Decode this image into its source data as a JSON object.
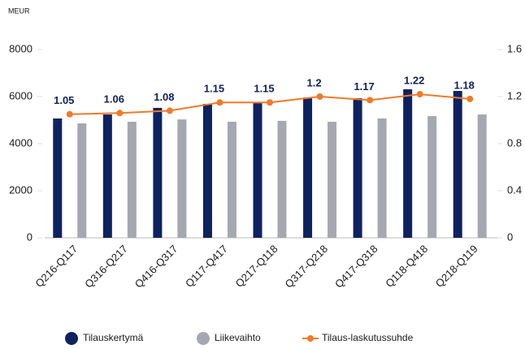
{
  "chart_data": {
    "type": "bar_line",
    "y_unit_label": "MEUR",
    "categories": [
      "Q216-Q117",
      "Q316-Q217",
      "Q416-Q317",
      "Q117-Q417",
      "Q217-Q118",
      "Q317-Q218",
      "Q417-Q318",
      "Q118-Q418",
      "Q218-Q119"
    ],
    "series": [
      {
        "name": "Tilauskertymä",
        "type": "bar",
        "color": "#0f2260",
        "values": [
          5070,
          5240,
          5520,
          5690,
          5720,
          5960,
          5930,
          6310,
          6240
        ]
      },
      {
        "name": "Liikevaihto",
        "type": "bar",
        "color": "#a5a8b0",
        "values": [
          4860,
          4930,
          5030,
          4930,
          4970,
          4930,
          5070,
          5170,
          5240
        ]
      },
      {
        "name": "Tilaus-laskutussuhde",
        "type": "line",
        "axis": "y2",
        "color": "#f07a2a",
        "values": [
          1.05,
          1.06,
          1.08,
          1.15,
          1.15,
          1.2,
          1.17,
          1.22,
          1.18
        ]
      }
    ],
    "ylim": [
      0,
      8000
    ],
    "yticks": [
      0,
      2000,
      4000,
      6000,
      8000
    ],
    "y2lim": [
      0,
      1.6
    ],
    "y2ticks": [
      0,
      0.4,
      0.8,
      1.2,
      1.6
    ],
    "grid": false,
    "legend": "bottom"
  }
}
